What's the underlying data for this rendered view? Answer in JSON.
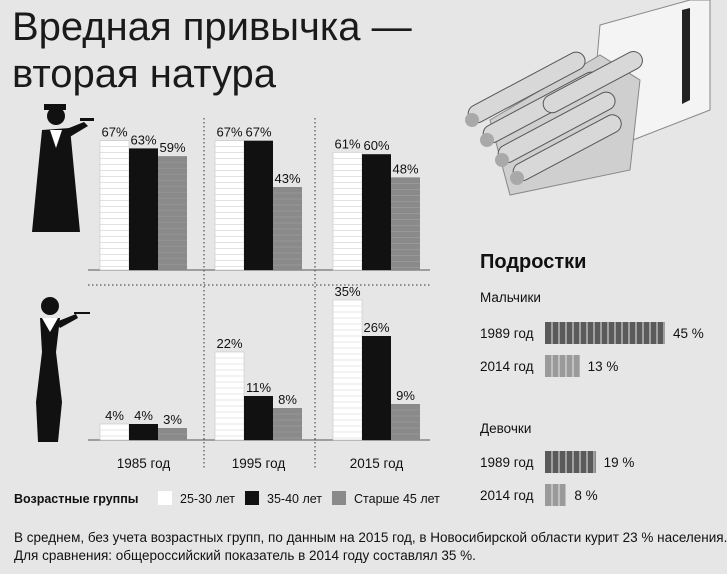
{
  "title": "Вредная привычка — вторая натура",
  "colors": {
    "white": "#ffffff",
    "black": "#111111",
    "gray": "#8a8a8a",
    "teen_bar": "#5a5a5a",
    "teen_bar_light": "#9a9a9a",
    "background": "#e6e6e6"
  },
  "icons": [
    "man-smoking-pipe-icon",
    "woman-smoking-cigarette-holder-icon",
    "cigarette-pack-icon"
  ],
  "chart_data": [
    {
      "type": "bar",
      "title": "",
      "categories": [
        "1985 год",
        "1995 год",
        "2015 год"
      ],
      "ylim": [
        0,
        100
      ],
      "unit": "%",
      "legend": {
        "title": "Возрастные группы",
        "placement": "bottom",
        "items": [
          {
            "name": "25-30 лет",
            "color": "#ffffff"
          },
          {
            "name": "35-40 лет",
            "color": "#111111"
          },
          {
            "name": "Старше 45 лет",
            "color": "#8a8a8a"
          }
        ]
      },
      "panels": [
        {
          "group": "men",
          "series": [
            {
              "name": "25-30 лет",
              "values": [
                67,
                67,
                61
              ]
            },
            {
              "name": "35-40 лет",
              "values": [
                63,
                67,
                60
              ]
            },
            {
              "name": "Старше 45 лет",
              "values": [
                59,
                43,
                48
              ]
            }
          ]
        },
        {
          "group": "women",
          "series": [
            {
              "name": "25-30 лет",
              "values": [
                4,
                22,
                35
              ]
            },
            {
              "name": "35-40 лет",
              "values": [
                4,
                11,
                26
              ]
            },
            {
              "name": "Старше 45 лет",
              "values": [
                3,
                8,
                9
              ]
            }
          ]
        }
      ]
    },
    {
      "type": "bar",
      "title": "Подростки",
      "unit": "%",
      "xlim": [
        0,
        45
      ],
      "groups": [
        {
          "name": "Мальчики",
          "items": [
            {
              "year": "1989 год",
              "value": 45,
              "label": "45 %"
            },
            {
              "year": "2014 год",
              "value": 13,
              "label": "13 %"
            }
          ]
        },
        {
          "name": "Девочки",
          "items": [
            {
              "year": "1989 год",
              "value": 19,
              "label": "19 %"
            },
            {
              "year": "2014 год",
              "value": 8,
              "label": "8 %"
            }
          ]
        }
      ]
    }
  ],
  "footnotes": [
    "В среднем, без учета возрастных групп, по данным на 2015 год, в Новосибирской области курит 23 % населения.",
    "Для сравнения: общероссийский показатель в 2014 году составлял 35 %."
  ]
}
